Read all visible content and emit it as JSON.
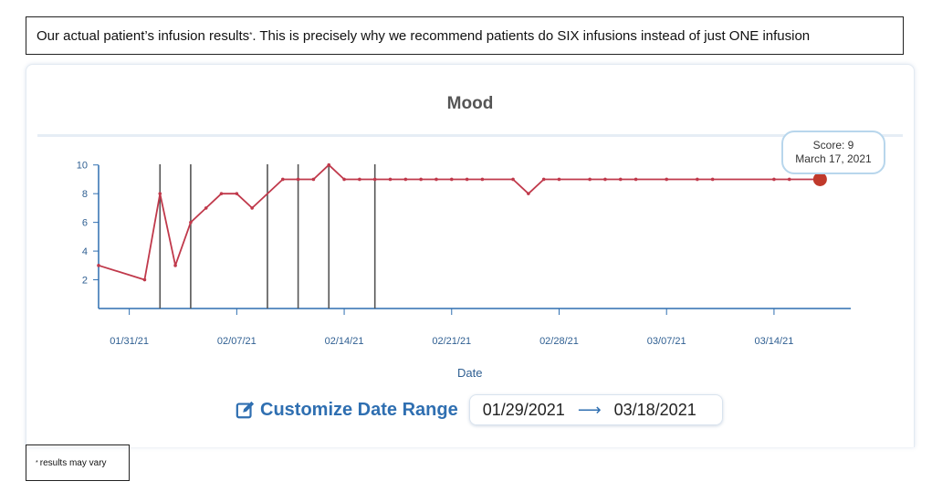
{
  "caption": {
    "text": "Our actual patient’s infusion results",
    "mark": "*",
    "rest": ". This is precisely why we recommend patients do SIX infusions instead of just ONE infusion"
  },
  "footnote": {
    "mark": "*",
    "text": "results may vary"
  },
  "tooltip": {
    "score_label": "Score: 9",
    "date": "March 17, 2021"
  },
  "customize": {
    "label": "Customize Date Range",
    "icon": "edit-icon"
  },
  "date_range": {
    "start": "01/29/2021",
    "end": "03/18/2021"
  },
  "colors": {
    "line": "#c0394b",
    "last_point": "#c0392b",
    "axis": "#2f6fb1",
    "infusion_marker": "#555555"
  },
  "chart_data": {
    "type": "line",
    "title": "Mood",
    "xlabel": "Date",
    "ylabel": "",
    "ylim": [
      0,
      11
    ],
    "yticks": [
      2,
      4,
      6,
      8,
      10
    ],
    "x_range": [
      "2021-01-29",
      "2021-03-19"
    ],
    "xticks": [
      {
        "date": "2021-01-31",
        "label": "01/31/21"
      },
      {
        "date": "2021-02-07",
        "label": "02/07/21"
      },
      {
        "date": "2021-02-14",
        "label": "02/14/21"
      },
      {
        "date": "2021-02-21",
        "label": "02/21/21"
      },
      {
        "date": "2021-02-28",
        "label": "02/28/21"
      },
      {
        "date": "2021-03-07",
        "label": "03/07/21"
      },
      {
        "date": "2021-03-14",
        "label": "03/14/21"
      }
    ],
    "series": [
      {
        "points": [
          {
            "x": "2021-01-29",
            "y": 3
          },
          {
            "x": "2021-02-01",
            "y": 2
          },
          {
            "x": "2021-02-02",
            "y": 8
          },
          {
            "x": "2021-02-03",
            "y": 3
          },
          {
            "x": "2021-02-04",
            "y": 6
          },
          {
            "x": "2021-02-05",
            "y": 7
          },
          {
            "x": "2021-02-06",
            "y": 8
          },
          {
            "x": "2021-02-07",
            "y": 8
          },
          {
            "x": "2021-02-08",
            "y": 7
          },
          {
            "x": "2021-02-10",
            "y": 9
          },
          {
            "x": "2021-02-11",
            "y": 9
          },
          {
            "x": "2021-02-12",
            "y": 9
          },
          {
            "x": "2021-02-13",
            "y": 10
          },
          {
            "x": "2021-02-14",
            "y": 9
          },
          {
            "x": "2021-02-15",
            "y": 9
          },
          {
            "x": "2021-02-16",
            "y": 9
          },
          {
            "x": "2021-02-17",
            "y": 9
          },
          {
            "x": "2021-02-18",
            "y": 9
          },
          {
            "x": "2021-02-19",
            "y": 9
          },
          {
            "x": "2021-02-20",
            "y": 9
          },
          {
            "x": "2021-02-21",
            "y": 9
          },
          {
            "x": "2021-02-22",
            "y": 9
          },
          {
            "x": "2021-02-23",
            "y": 9
          },
          {
            "x": "2021-02-25",
            "y": 9
          },
          {
            "x": "2021-02-26",
            "y": 8
          },
          {
            "x": "2021-02-27",
            "y": 9
          },
          {
            "x": "2021-02-28",
            "y": 9
          },
          {
            "x": "2021-03-02",
            "y": 9
          },
          {
            "x": "2021-03-03",
            "y": 9
          },
          {
            "x": "2021-03-04",
            "y": 9
          },
          {
            "x": "2021-03-05",
            "y": 9
          },
          {
            "x": "2021-03-07",
            "y": 9
          },
          {
            "x": "2021-03-09",
            "y": 9
          },
          {
            "x": "2021-03-10",
            "y": 9
          },
          {
            "x": "2021-03-14",
            "y": 9
          },
          {
            "x": "2021-03-15",
            "y": 9
          },
          {
            "x": "2021-03-17",
            "y": 9
          }
        ]
      }
    ],
    "infusion_markers": [
      "2021-02-02",
      "2021-02-04",
      "2021-02-09",
      "2021-02-11",
      "2021-02-13",
      "2021-02-16"
    ],
    "grid": false,
    "highlight_last_point": true
  }
}
